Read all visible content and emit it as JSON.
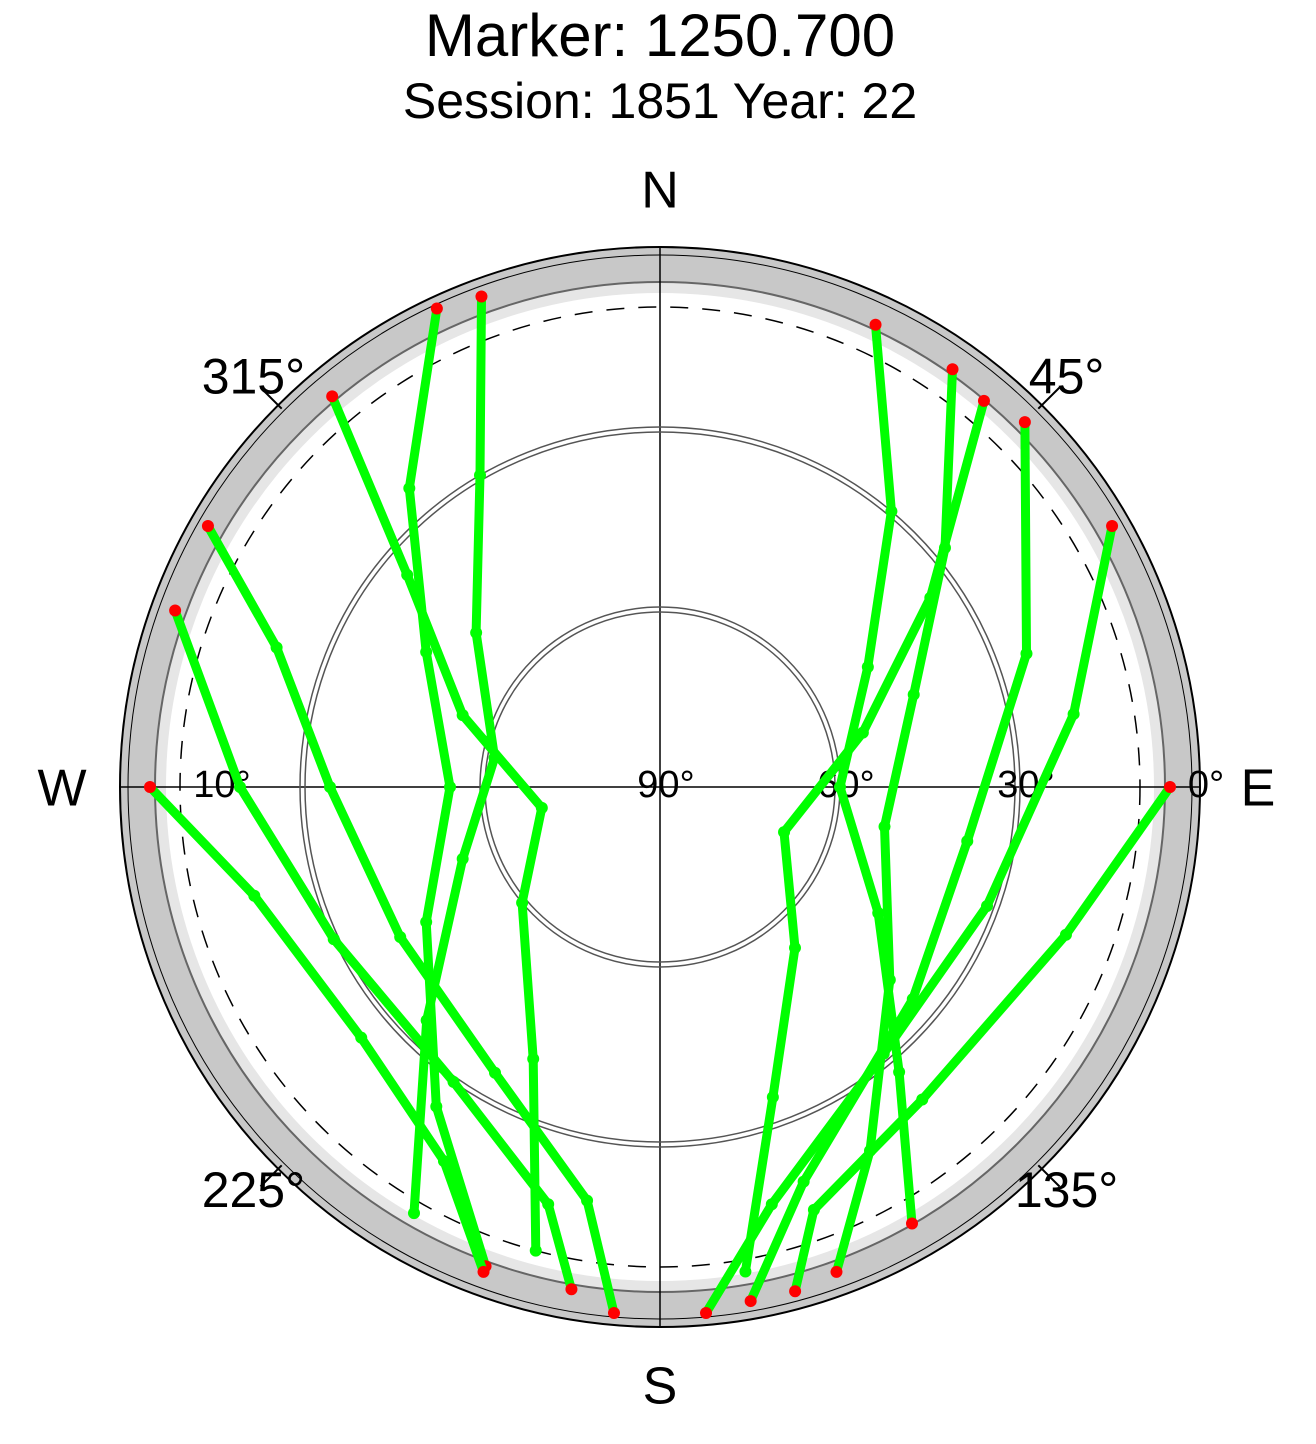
{
  "chart_data": {
    "type": "skyplot",
    "title": "Marker: 1250.700",
    "subtitle": "Session: 1851 Year: 22",
    "directions": [
      "N",
      "E",
      "S",
      "W"
    ],
    "xlim": [
      0,
      360
    ],
    "xticks": [
      {
        "value": 45,
        "label": "45°"
      },
      {
        "value": 135,
        "label": "135°"
      },
      {
        "value": 225,
        "label": "225°"
      },
      {
        "value": 315,
        "label": "315°"
      }
    ],
    "ylim": [
      90,
      0
    ],
    "yticks": [
      {
        "value": 0,
        "label": "0°"
      },
      {
        "value": 10,
        "label": "10°"
      },
      {
        "value": 30,
        "label": "30°"
      },
      {
        "value": 60,
        "label": "60°"
      },
      {
        "value": 90,
        "label": "90°"
      }
    ],
    "mask_elevation": 10,
    "low_elevation": 6,
    "track_color": "#00ff00",
    "low_color": "#ff0000",
    "series": [
      {
        "x": [
          335,
          320,
          300,
          270,
          240,
          215,
          200
        ],
        "values": [
          2,
          25,
          45,
          55,
          45,
          25,
          5
        ]
      },
      {
        "x": [
          340,
          330,
          310,
          280,
          250,
          225,
          210
        ],
        "values": [
          3,
          30,
          50,
          62,
          55,
          35,
          8
        ]
      },
      {
        "x": [
          25,
          40,
          60,
          90,
          120,
          140,
          150
        ],
        "values": [
          5,
          30,
          50,
          60,
          48,
          28,
          6
        ]
      },
      {
        "x": [
          35,
          50,
          70,
          100,
          130,
          150,
          160
        ],
        "values": [
          5,
          28,
          45,
          52,
          40,
          20,
          4
        ]
      },
      {
        "x": [
          300,
          290,
          270,
          240,
          210,
          190,
          185
        ],
        "values": [
          3,
          22,
          35,
          40,
          35,
          20,
          2
        ]
      },
      {
        "x": [
          45,
          70,
          100,
          130,
          160,
          170
        ],
        "values": [
          4,
          25,
          38,
          35,
          20,
          3
        ]
      },
      {
        "x": [
          290,
          270,
          245,
          215,
          195,
          190
        ],
        "values": [
          4,
          20,
          30,
          30,
          18,
          5
        ]
      },
      {
        "x": [
          60,
          80,
          110,
          140,
          165,
          175
        ],
        "values": [
          3,
          20,
          32,
          32,
          18,
          2
        ]
      },
      {
        "x": [
          320,
          310,
          290,
          260,
          230,
          205,
          195
        ],
        "values": [
          5,
          35,
          55,
          70,
          60,
          40,
          10
        ]
      },
      {
        "x": [
          40,
          55,
          75,
          110,
          140,
          160,
          170
        ],
        "values": [
          6,
          35,
          55,
          68,
          55,
          35,
          8
        ]
      },
      {
        "x": [
          270,
          255,
          230,
          210,
          200
        ],
        "values": [
          5,
          20,
          25,
          18,
          4
        ]
      },
      {
        "x": [
          90,
          110,
          140,
          160,
          165
        ],
        "values": [
          5,
          18,
          22,
          15,
          3
        ]
      }
    ]
  }
}
